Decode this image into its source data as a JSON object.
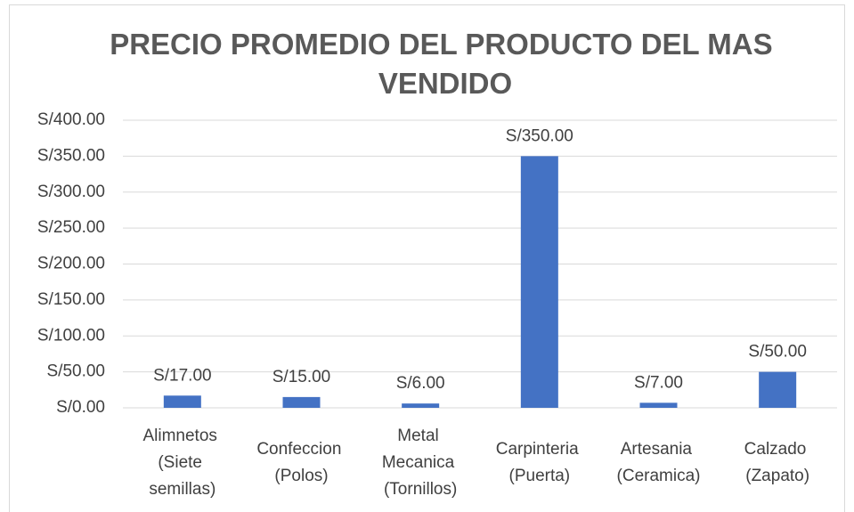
{
  "chart_data": {
    "type": "bar",
    "title": "PRECIO PROMEDIO DEL PRODUCTO DEL MAS VENDIDO",
    "categories": [
      "Alimnetos (Siete semillas)",
      "Confeccion (Polos)",
      "Metal Mecanica (Tornillos)",
      "Carpinteria (Puerta)",
      "Artesania (Ceramica)",
      "Calzado (Zapato)"
    ],
    "values": [
      17,
      15,
      6,
      350,
      7,
      50
    ],
    "value_labels": [
      "S/17.00",
      "S/15.00",
      "S/6.00",
      "S/350.00",
      "S/7.00",
      "S/50.00"
    ],
    "color": "#4472c4",
    "ylim": [
      0,
      400
    ],
    "yticks": [
      {
        "value": 0,
        "label": "S/0.00"
      },
      {
        "value": 50,
        "label": "S/50.00"
      },
      {
        "value": 100,
        "label": "S/100.00"
      },
      {
        "value": 150,
        "label": "S/150.00"
      },
      {
        "value": 200,
        "label": "S/200.00"
      },
      {
        "value": 250,
        "label": "S/250.00"
      },
      {
        "value": 300,
        "label": "S/300.00"
      },
      {
        "value": 350,
        "label": "S/350.00"
      },
      {
        "value": 400,
        "label": "S/400.00"
      }
    ],
    "grid": true
  }
}
